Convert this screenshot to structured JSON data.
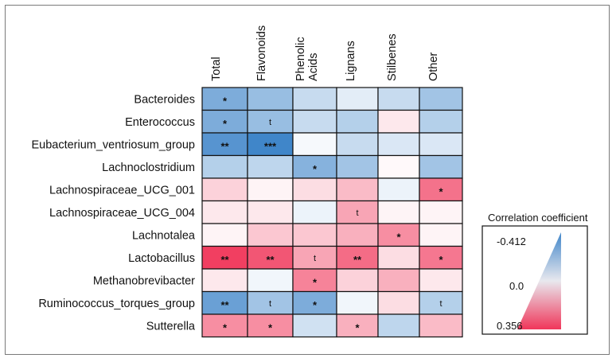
{
  "chart_data": {
    "type": "heatmap",
    "title": "",
    "columns": [
      "Total",
      "Flavonoids",
      "Phenolic Acids",
      "Lignans",
      "Stilbenes",
      "Other"
    ],
    "column_label_lines": [
      [
        "Total"
      ],
      [
        "Flavonoids"
      ],
      [
        "Phenolic",
        "Acids"
      ],
      [
        "Lignans"
      ],
      [
        "Stilbenes"
      ],
      [
        "Other"
      ]
    ],
    "rows": [
      "Bacteroides",
      "Enterococcus",
      "Eubacterium_ventriosum_group",
      "Lachnoclostridium",
      "Lachnospiraceae_UCG_001",
      "Lachnospiraceae_UCG_004",
      "Lachnotalea",
      "Lactobacillus",
      "Methanobrevibacter",
      "Ruminococcus_torques_group",
      "Sutterella"
    ],
    "values": [
      [
        -0.28,
        -0.22,
        -0.12,
        -0.06,
        -0.12,
        -0.2
      ],
      [
        -0.28,
        -0.22,
        -0.12,
        -0.16,
        0.04,
        -0.16
      ],
      [
        -0.36,
        -0.41,
        -0.02,
        -0.12,
        -0.08,
        -0.08
      ],
      [
        -0.16,
        -0.14,
        -0.26,
        -0.2,
        0.01,
        -0.2
      ],
      [
        0.08,
        0.02,
        0.06,
        0.12,
        -0.04,
        0.25
      ],
      [
        0.04,
        0.04,
        -0.04,
        0.16,
        0.02,
        0.02
      ],
      [
        0.02,
        0.1,
        0.1,
        0.14,
        0.2,
        0.02
      ],
      [
        0.34,
        0.3,
        0.16,
        0.26,
        0.06,
        0.24
      ],
      [
        0.04,
        -0.03,
        0.22,
        0.08,
        0.14,
        0.04
      ],
      [
        -0.32,
        -0.2,
        -0.28,
        -0.03,
        0.06,
        -0.16
      ],
      [
        0.2,
        0.2,
        -0.1,
        0.14,
        -0.14,
        0.12
      ]
    ],
    "significance": [
      [
        "*",
        "",
        "",
        "",
        "",
        ""
      ],
      [
        "*",
        "t",
        "",
        "",
        "",
        ""
      ],
      [
        "**",
        "***",
        "",
        "",
        "",
        ""
      ],
      [
        "",
        "",
        "*",
        "",
        "",
        ""
      ],
      [
        "",
        "",
        "",
        "",
        "",
        "*"
      ],
      [
        "",
        "",
        "",
        "t",
        "",
        ""
      ],
      [
        "",
        "",
        "",
        "",
        "*",
        ""
      ],
      [
        "**",
        "**",
        "t",
        "**",
        "",
        "*"
      ],
      [
        "",
        "",
        "*",
        "",
        "",
        ""
      ],
      [
        "**",
        "t",
        "*",
        "",
        "",
        "t"
      ],
      [
        "*",
        "*",
        "",
        "*",
        "",
        ""
      ]
    ],
    "legend": {
      "title": "Correlation coefficient",
      "min_label": "-0.412",
      "mid_label": "0.0",
      "max_label": "0.356",
      "min": -0.412,
      "max": 0.356
    },
    "colors": {
      "negative": "#3f85c9",
      "neutral": "#ffffff",
      "positive": "#f0365a",
      "border": "#111111"
    }
  }
}
